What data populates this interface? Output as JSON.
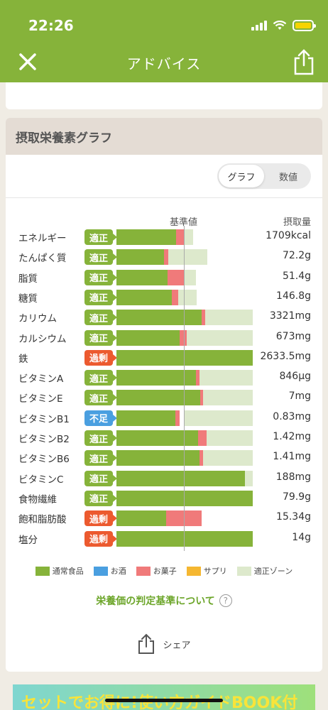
{
  "status": {
    "time": "22:26"
  },
  "nav": {
    "title": "アドバイス",
    "close_icon": "close-icon",
    "share_icon": "share-icon"
  },
  "card": {
    "title": "摂取栄養素グラフ",
    "toggle": {
      "graph": "グラフ",
      "number": "数値",
      "selected": "グラフ"
    },
    "col_reference": "基準値",
    "col_intake": "摂取量"
  },
  "colors": {
    "normal": "#86b33a",
    "sake": "#4a9fe0",
    "sweets": "#f07a7a",
    "supplement": "#f5b731",
    "zone": "#dde9cc",
    "ok": "#86b33a",
    "over": "#ec5a2f",
    "short": "#4a9fe0"
  },
  "chart_data": {
    "type": "bar",
    "categories": [
      "エネルギー",
      "たんぱく質",
      "脂質",
      "糖質",
      "カリウム",
      "カルシウム",
      "鉄",
      "ビタミンA",
      "ビタミンE",
      "ビタミンB1",
      "ビタミンB2",
      "ビタミンB6",
      "ビタミンC",
      "食物繊維",
      "飽和脂肪酸",
      "塩分"
    ],
    "reference_level": 1.0,
    "series": [
      {
        "name": "通常食品",
        "values": [
          0.88,
          0.7,
          0.75,
          0.81,
          1.25,
          0.93,
          2.0,
          1.17,
          1.23,
          0.86,
          1.2,
          1.22,
          1.89,
          2.0,
          0.73,
          2.0
        ]
      },
      {
        "name": "お菓子",
        "values": [
          0.11,
          0.06,
          0.25,
          0.1,
          0.05,
          0.1,
          0.0,
          0.05,
          0.04,
          0.07,
          0.12,
          0.05,
          0.0,
          0.0,
          0.52,
          0.0
        ]
      }
    ],
    "zone": [
      [
        0.87,
        1.13
      ],
      [
        0.75,
        1.33
      ],
      [
        0.87,
        1.17
      ],
      [
        0.87,
        1.18
      ],
      [
        1.0,
        2.0
      ],
      [
        1.0,
        2.0
      ],
      [
        1.0,
        2.0
      ],
      [
        1.0,
        2.0
      ],
      [
        1.0,
        2.0
      ],
      [
        1.0,
        2.0
      ],
      [
        1.0,
        2.0
      ],
      [
        1.0,
        2.0
      ],
      [
        1.0,
        2.0
      ],
      [
        1.0,
        2.0
      ],
      [
        0.0,
        0.0
      ],
      [
        0.0,
        0.0
      ]
    ],
    "status": [
      "適正",
      "適正",
      "適正",
      "適正",
      "適正",
      "適正",
      "過剰",
      "適正",
      "適正",
      "不足",
      "適正",
      "適正",
      "適正",
      "適正",
      "過剰",
      "過剰"
    ],
    "values_text": [
      "1709kcal",
      "72.2g",
      "51.4g",
      "146.8g",
      "3321mg",
      "673mg",
      "2633.5mg",
      "846µg",
      "7mg",
      "0.83mg",
      "1.42mg",
      "1.41mg",
      "188mg",
      "79.9g",
      "15.34g",
      "14g"
    ],
    "xlim": [
      0,
      2
    ]
  },
  "legend": [
    {
      "label": "通常食品",
      "color": "#86b33a"
    },
    {
      "label": "お酒",
      "color": "#4a9fe0"
    },
    {
      "label": "お菓子",
      "color": "#f07a7a"
    },
    {
      "label": "サプリ",
      "color": "#f5b731"
    },
    {
      "label": "適正ゾーン",
      "color": "#dde9cc"
    }
  ],
  "criteria_link": "栄養価の判定基準について",
  "share_label": "シェア",
  "banner_text": "セットでお得に!使い方ガイドBOOK付"
}
